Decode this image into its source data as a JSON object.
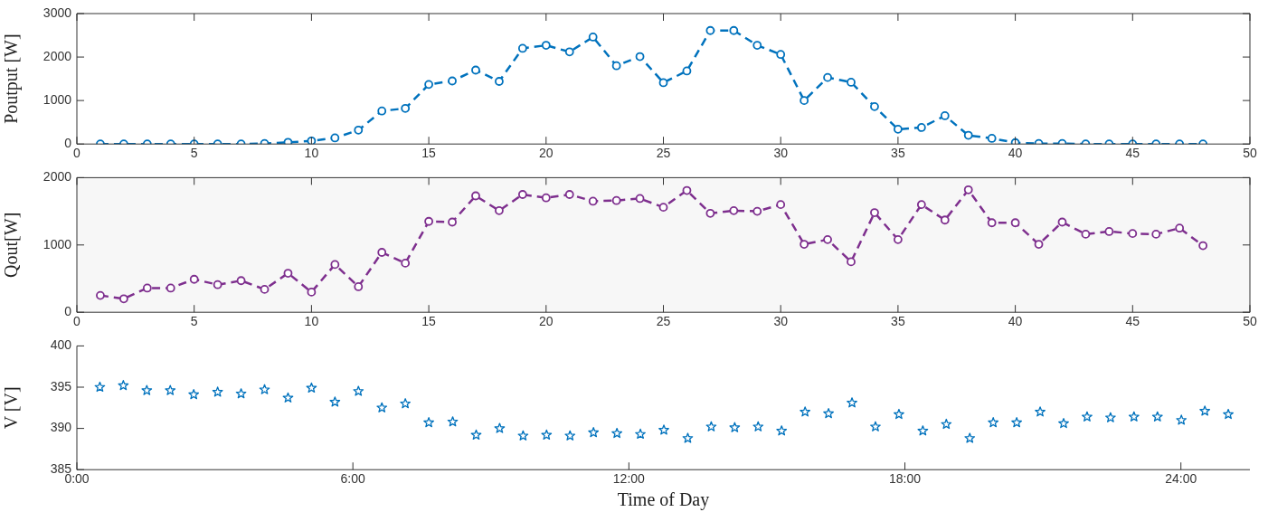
{
  "chart_data": [
    {
      "type": "line",
      "ylabel": "Poutput [W]",
      "x": [
        1,
        2,
        3,
        4,
        5,
        6,
        7,
        8,
        9,
        10,
        11,
        12,
        13,
        14,
        15,
        16,
        17,
        18,
        19,
        20,
        21,
        22,
        23,
        24,
        25,
        26,
        27,
        28,
        29,
        30,
        31,
        32,
        33,
        34,
        35,
        36,
        37,
        38,
        39,
        40,
        41,
        42,
        43,
        44,
        45,
        46,
        47,
        48
      ],
      "series": [
        {
          "color": "#0072bd",
          "values": [
            0,
            0,
            0,
            0,
            0,
            0,
            0,
            10,
            40,
            70,
            140,
            320,
            760,
            820,
            1370,
            1450,
            1700,
            1440,
            2200,
            2270,
            2120,
            2460,
            1800,
            2010,
            1410,
            1680,
            2610,
            2610,
            2270,
            2060,
            1000,
            1530,
            1420,
            860,
            340,
            380,
            650,
            200,
            130,
            30,
            10,
            10,
            0,
            0,
            0,
            0,
            0,
            0
          ]
        }
      ],
      "xlim": [
        0,
        50
      ],
      "xticks": [
        0,
        5,
        10,
        15,
        20,
        25,
        30,
        35,
        40,
        45,
        50
      ],
      "ylim": [
        0,
        3000
      ],
      "yticks": [
        0,
        1000,
        2000,
        3000
      ],
      "marker": "circle",
      "line_style": "dashed",
      "grid": false,
      "legend": false
    },
    {
      "type": "line",
      "ylabel": "Qout[W]",
      "x": [
        1,
        2,
        3,
        4,
        5,
        6,
        7,
        8,
        9,
        10,
        11,
        12,
        13,
        14,
        15,
        16,
        17,
        18,
        19,
        20,
        21,
        22,
        23,
        24,
        25,
        26,
        27,
        28,
        29,
        30,
        31,
        32,
        33,
        34,
        35,
        36,
        37,
        38,
        39,
        40,
        41,
        42,
        43,
        44,
        45,
        46,
        47,
        48
      ],
      "series": [
        {
          "color": "#7e2f8e",
          "values": [
            250,
            200,
            360,
            360,
            490,
            410,
            470,
            340,
            580,
            300,
            710,
            380,
            890,
            730,
            1350,
            1340,
            1730,
            1510,
            1750,
            1700,
            1750,
            1650,
            1660,
            1690,
            1560,
            1810,
            1470,
            1510,
            1500,
            1600,
            1010,
            1080,
            750,
            1480,
            1080,
            1600,
            1370,
            1820,
            1330,
            1330,
            1010,
            1340,
            1160,
            1200,
            1170,
            1160,
            1250,
            990
          ]
        }
      ],
      "xlim": [
        0,
        50
      ],
      "xticks": [
        0,
        5,
        10,
        15,
        20,
        25,
        30,
        35,
        40,
        45,
        50
      ],
      "ylim": [
        0,
        2000
      ],
      "yticks": [
        0,
        1000,
        2000
      ],
      "marker": "circle",
      "line_style": "dashed",
      "grid": false,
      "legend": false
    },
    {
      "type": "scatter",
      "ylabel": "V [V]",
      "xlabel": "Time of Day",
      "x": [
        0.5,
        1.01,
        1.52,
        2.03,
        2.54,
        3.06,
        3.57,
        4.08,
        4.59,
        5.1,
        5.61,
        6.12,
        6.63,
        7.14,
        7.65,
        8.17,
        8.68,
        9.19,
        9.7,
        10.21,
        10.72,
        11.23,
        11.74,
        12.25,
        12.76,
        13.28,
        13.79,
        14.3,
        14.81,
        15.32,
        15.83,
        16.34,
        16.85,
        17.36,
        17.87,
        18.39,
        18.9,
        19.41,
        19.92,
        20.43,
        20.94,
        21.45,
        21.96,
        22.47,
        22.98,
        23.49,
        24.01,
        24.52,
        25.03
      ],
      "series": [
        {
          "color": "#0072bd",
          "values": [
            395.0,
            395.2,
            394.6,
            394.6,
            394.1,
            394.4,
            394.2,
            394.7,
            393.7,
            394.9,
            393.2,
            394.5,
            392.5,
            393.0,
            390.7,
            390.8,
            389.2,
            390.0,
            389.1,
            389.2,
            389.1,
            389.5,
            389.4,
            389.3,
            389.8,
            388.8,
            390.2,
            390.1,
            390.2,
            389.7,
            392.0,
            391.8,
            393.1,
            390.2,
            391.7,
            389.7,
            390.5,
            388.8,
            390.7,
            390.7,
            392.0,
            390.6,
            391.4,
            391.3,
            391.4,
            391.4,
            391.0,
            392.1,
            391.7
          ]
        }
      ],
      "xlim": [
        0,
        25.5
      ],
      "xticks": [
        {
          "value": 0,
          "label": "0:00"
        },
        {
          "value": 6,
          "label": "6:00"
        },
        {
          "value": 12,
          "label": "12:00"
        },
        {
          "value": 18,
          "label": "18:00"
        },
        {
          "value": 24,
          "label": "24:00"
        }
      ],
      "ylim": [
        385,
        400
      ],
      "yticks": [
        385,
        390,
        395,
        400
      ],
      "marker": "star",
      "grid": false,
      "legend": false
    }
  ]
}
